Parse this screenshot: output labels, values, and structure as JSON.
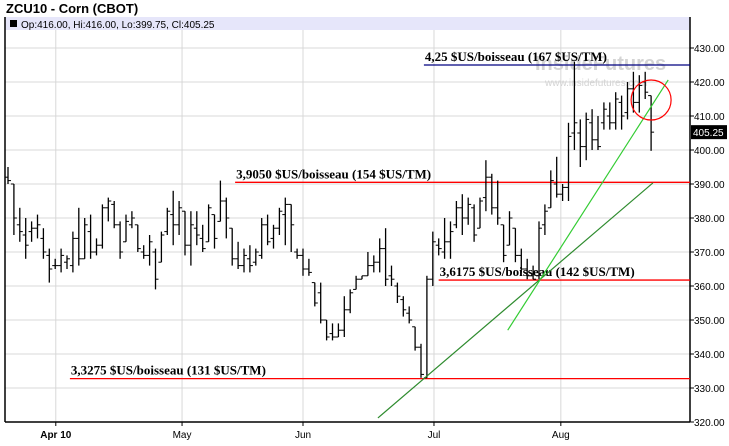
{
  "title": "ZCU10 - Corn (CBOT)",
  "ohlc_label": "Op:416.00, Hi:416.00, Lo:399.75, Cl:405.25",
  "watermark": {
    "brand": "InsideFutures",
    "url": "www.insidefutures.com"
  },
  "last_price_label": "405.25",
  "colors": {
    "header_bar": "#e6e6fa",
    "support_lines": "#ff0000",
    "top_line": "#000080",
    "trend_dark": "#2e8b2e",
    "trend_light": "#33cc33",
    "circle": "#ff0000",
    "grid": "#d8d8d8"
  },
  "chart_data": {
    "type": "ohlc",
    "ylim": [
      320,
      435
    ],
    "yticks": [
      "320.00",
      "330.00",
      "340.00",
      "350.00",
      "360.00",
      "370.00",
      "380.00",
      "390.00",
      "400.00",
      "410.00",
      "420.00",
      "430.00"
    ],
    "xticks": [
      {
        "label": "Apr 10",
        "bar": 8.1,
        "bold": true
      },
      {
        "label": "May",
        "bar": 29.5
      },
      {
        "label": "Jun",
        "bar": 50
      },
      {
        "label": "Jul",
        "bar": 72.2
      },
      {
        "label": "Aug",
        "bar": 93.7
      }
    ],
    "grid": true,
    "bars": [
      [
        392,
        395,
        390,
        391
      ],
      [
        390,
        390,
        375,
        380
      ],
      [
        378,
        383,
        373,
        376
      ],
      [
        375,
        380,
        368,
        372
      ],
      [
        376,
        379,
        373,
        377
      ],
      [
        377,
        381,
        374,
        378
      ],
      [
        374,
        377,
        368,
        370
      ],
      [
        369,
        371,
        361,
        365
      ],
      [
        366,
        368,
        365,
        366
      ],
      [
        366,
        371,
        364,
        369
      ],
      [
        367,
        369,
        365,
        368
      ],
      [
        366,
        376,
        364,
        374
      ],
      [
        374,
        383,
        366,
        368
      ],
      [
        368,
        380,
        368,
        378
      ],
      [
        376,
        381,
        368,
        370
      ],
      [
        370,
        374,
        369,
        372
      ],
      [
        372,
        384,
        371,
        383
      ],
      [
        383,
        386,
        379,
        385
      ],
      [
        384,
        385,
        377,
        378
      ],
      [
        378,
        379,
        368,
        370
      ],
      [
        373,
        381,
        373,
        379
      ],
      [
        378,
        382,
        377,
        380
      ],
      [
        378,
        378,
        370,
        371
      ],
      [
        370,
        372,
        368,
        369
      ],
      [
        369,
        375,
        366,
        373
      ],
      [
        370,
        371,
        359,
        362
      ],
      [
        367,
        376,
        367,
        375
      ],
      [
        376,
        383,
        375,
        382
      ],
      [
        381,
        388,
        372,
        378
      ],
      [
        378,
        385,
        375,
        383
      ],
      [
        382,
        382,
        369,
        372
      ],
      [
        372,
        382,
        366,
        378
      ],
      [
        377,
        382,
        372,
        375
      ],
      [
        374,
        378,
        370,
        371
      ],
      [
        373,
        384,
        373,
        383
      ],
      [
        381,
        381,
        371,
        374
      ],
      [
        379,
        391,
        379,
        385
      ],
      [
        385,
        386,
        374,
        380
      ],
      [
        377,
        377,
        366,
        368
      ],
      [
        368,
        373,
        365,
        366
      ],
      [
        366,
        371,
        364,
        369
      ],
      [
        368,
        372,
        364,
        366
      ],
      [
        367,
        371,
        366,
        370
      ],
      [
        369,
        380,
        368,
        378
      ],
      [
        378,
        381,
        372,
        373
      ],
      [
        374,
        378,
        371,
        377
      ],
      [
        377,
        383,
        375,
        382
      ],
      [
        381,
        386,
        372,
        384
      ],
      [
        384,
        384,
        370,
        378
      ],
      [
        370,
        371,
        368,
        369
      ],
      [
        369,
        371,
        363,
        365
      ],
      [
        365,
        368,
        363,
        364
      ],
      [
        361,
        361,
        354,
        355
      ],
      [
        358,
        361,
        349,
        350
      ],
      [
        350,
        350,
        344,
        345
      ],
      [
        346,
        349,
        344,
        345
      ],
      [
        345,
        349,
        345,
        347
      ],
      [
        347,
        357,
        345,
        353
      ],
      [
        353,
        359,
        352,
        358
      ],
      [
        359,
        363,
        359,
        362
      ],
      [
        362,
        363,
        362,
        363
      ],
      [
        363,
        370,
        363,
        366
      ],
      [
        366,
        369,
        364,
        367
      ],
      [
        367,
        374,
        364,
        371
      ],
      [
        371,
        377,
        360,
        362
      ],
      [
        363,
        366,
        360,
        362
      ],
      [
        360,
        361,
        355,
        357
      ],
      [
        356,
        357,
        351,
        353
      ],
      [
        352,
        354,
        349,
        350
      ],
      [
        348,
        348,
        341,
        342
      ],
      [
        342,
        343,
        333,
        334
      ],
      [
        333,
        363,
        333,
        362
      ],
      [
        362,
        376,
        360,
        373
      ],
      [
        372,
        374,
        369,
        371
      ],
      [
        370,
        380,
        368,
        373
      ],
      [
        373,
        379,
        368,
        376
      ],
      [
        378,
        385,
        377,
        383
      ],
      [
        383,
        387,
        375,
        380
      ],
      [
        380,
        386,
        378,
        384
      ],
      [
        383,
        384,
        373,
        375
      ],
      [
        377,
        386,
        377,
        385
      ],
      [
        386,
        397,
        382,
        392
      ],
      [
        392,
        393,
        381,
        383
      ],
      [
        383,
        391,
        378,
        380
      ],
      [
        378,
        378,
        367,
        369
      ],
      [
        372,
        382,
        372,
        380
      ],
      [
        377,
        377,
        367,
        369
      ],
      [
        369,
        371,
        364,
        365
      ],
      [
        365,
        368,
        362,
        363
      ],
      [
        363,
        366,
        362,
        362
      ],
      [
        363,
        379,
        362,
        377
      ],
      [
        378,
        384,
        375,
        382
      ],
      [
        383,
        394,
        383,
        391
      ],
      [
        390,
        398,
        386,
        387
      ],
      [
        387,
        390,
        385,
        389
      ],
      [
        389,
        408,
        385,
        404
      ],
      [
        405,
        426,
        400,
        408
      ],
      [
        405,
        409,
        395,
        401
      ],
      [
        401,
        411,
        397,
        409
      ],
      [
        408,
        412,
        400,
        403
      ],
      [
        403,
        410,
        400,
        401
      ],
      [
        408,
        414,
        406,
        412
      ],
      [
        410,
        414,
        406,
        408
      ],
      [
        408,
        417,
        406,
        415
      ],
      [
        414,
        416,
        406,
        410
      ],
      [
        411,
        420,
        409,
        418
      ],
      [
        418,
        423,
        411,
        414
      ],
      [
        414,
        422,
        411,
        419
      ],
      [
        420,
        423,
        415,
        417
      ],
      [
        416,
        416,
        399.75,
        405.25
      ]
    ],
    "levels": [
      {
        "price": 425,
        "from_bar": 71,
        "label": "4,25 $US/boisseau (167 $US/TM)",
        "color": "#000080"
      },
      {
        "price": 390.5,
        "from_bar": 39,
        "label": "3,9050 $US/boisseau (154 $US/TM)",
        "color": "#ff0000"
      },
      {
        "price": 361.75,
        "from_bar": 73.5,
        "label": "3,6175 $US/boisseau (142 $US/TM)",
        "color": "#ff0000"
      },
      {
        "price": 332.75,
        "from_bar": 11,
        "label": "3,3275 $US/boisseau (131 $US/TM)",
        "color": "#ff0000"
      }
    ],
    "trendlines": [
      {
        "from": [
          62.7,
          321.2
        ],
        "to": [
          109.3,
          390.3
        ],
        "color": "#2e8b2e"
      },
      {
        "from": [
          84.7,
          347
        ],
        "to": [
          111.9,
          420.6
        ],
        "color": "#33cc33"
      }
    ],
    "highlight_circle": {
      "bar": 109,
      "price": 414.7
    }
  }
}
